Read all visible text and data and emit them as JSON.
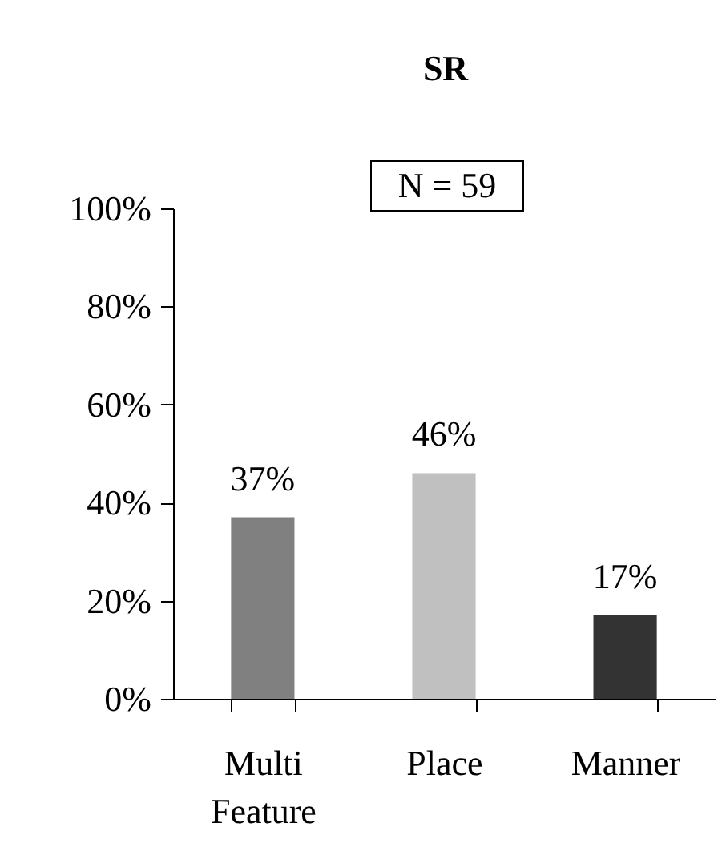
{
  "chart_data": {
    "type": "bar",
    "title": "SR",
    "annotations": [
      "N =  59"
    ],
    "categories": [
      "Multi Feature",
      "Place",
      "Manner"
    ],
    "values": [
      37,
      46,
      17
    ],
    "colors": [
      "#808080",
      "#c0c0c0",
      "#333333"
    ],
    "value_labels": [
      "37%",
      "46%",
      "17%"
    ],
    "ylim": [
      0,
      100
    ],
    "yticks": [
      {
        "value": 0,
        "label": "0%"
      },
      {
        "value": 20,
        "label": "20%"
      },
      {
        "value": 40,
        "label": "40%"
      },
      {
        "value": 60,
        "label": "60%"
      },
      {
        "value": 80,
        "label": "80%"
      },
      {
        "value": 100,
        "label": "100%"
      }
    ],
    "grid": false
  }
}
